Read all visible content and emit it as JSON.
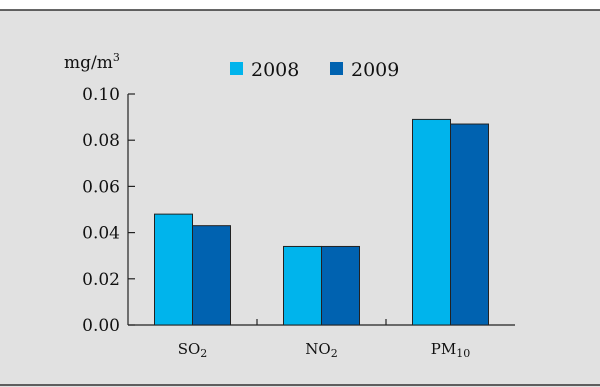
{
  "chart_data": {
    "type": "bar",
    "unit_label": {
      "base": "mg/m",
      "sup": "3"
    },
    "categories": [
      {
        "base": "SO",
        "sub": "2"
      },
      {
        "base": "NO",
        "sub": "2"
      },
      {
        "base": "PM",
        "sub": "10"
      }
    ],
    "series": [
      {
        "name": "2008",
        "values": [
          0.048,
          0.034,
          0.089
        ],
        "color": "#00b4ec"
      },
      {
        "name": "2009",
        "values": [
          0.043,
          0.034,
          0.087
        ],
        "color": "#0062b0"
      }
    ],
    "ylim": [
      0,
      0.1
    ],
    "yticks": [
      "0.00",
      "0.02",
      "0.04",
      "0.06",
      "0.08",
      "0.10"
    ],
    "grid": false,
    "legend_position": "top"
  },
  "colors": {
    "panel_background": "#e1e1e1",
    "frame_line": "#333333",
    "axis": "#222222"
  }
}
